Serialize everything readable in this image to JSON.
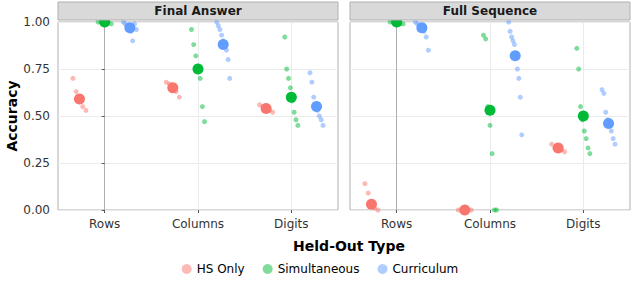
{
  "chart_data": [
    {
      "type": "scatter",
      "title": "Final Answer",
      "x_label": "Held-Out Type",
      "y_label": "Accuracy",
      "categories": [
        "Rows",
        "Columns",
        "Digits"
      ],
      "ylim": [
        0,
        1
      ],
      "yticks": [
        {
          "value": 0,
          "label": "0.00"
        },
        {
          "value": 0.25,
          "label": "0.25"
        },
        {
          "value": 0.5,
          "label": "0.50"
        },
        {
          "value": 0.75,
          "label": "0.75"
        },
        {
          "value": 1,
          "label": "1.00"
        }
      ],
      "grid": true,
      "legend": "bottom",
      "series": [
        {
          "name": "HS Only",
          "color": "#F8766D",
          "values": [
            0.59,
            0.65,
            0.54
          ],
          "points": [
            [
              0.7,
              0.63,
              0.58,
              0.55,
              0.53
            ],
            [
              0.68,
              0.67,
              0.65,
              0.63,
              0.6
            ],
            [
              0.56,
              0.55,
              0.54,
              0.53,
              0.52
            ]
          ]
        },
        {
          "name": "Simultaneous",
          "color": "#00BA38",
          "values": [
            1.0,
            0.75,
            0.6
          ],
          "points": [
            [
              1.0,
              1.0,
              0.99,
              1.0,
              0.99
            ],
            [
              0.96,
              0.88,
              0.82,
              0.76,
              0.7,
              0.55,
              0.47
            ],
            [
              0.92,
              0.75,
              0.7,
              0.65,
              0.58,
              0.52,
              0.48,
              0.45
            ]
          ]
        },
        {
          "name": "Curriculum",
          "color": "#619CFF",
          "values": [
            0.97,
            0.88,
            0.55
          ],
          "points": [
            [
              1.0,
              0.99,
              0.98,
              0.97,
              0.95,
              0.9,
              0.99,
              0.96
            ],
            [
              1.0,
              0.98,
              0.96,
              0.93,
              0.9,
              0.87,
              0.85,
              0.8,
              0.7
            ],
            [
              0.73,
              0.68,
              0.6,
              0.56,
              0.53,
              0.5,
              0.48,
              0.45
            ]
          ]
        }
      ]
    },
    {
      "type": "scatter",
      "title": "Full Sequence",
      "categories": [
        "Rows",
        "Columns",
        "Digits"
      ],
      "ylim": [
        0,
        1
      ],
      "yticks": [
        {
          "value": 0,
          "label": "0.00"
        },
        {
          "value": 0.25,
          "label": "0.25"
        },
        {
          "value": 0.5,
          "label": "0.50"
        },
        {
          "value": 0.75,
          "label": "0.75"
        },
        {
          "value": 1,
          "label": "1.00"
        }
      ],
      "grid": true,
      "tick_labels": "x",
      "series": [
        {
          "name": "HS Only",
          "color": "#F8766D",
          "values": [
            0.03,
            0.0,
            0.33
          ],
          "points": [
            [
              0.14,
              0.09,
              0.03,
              0.01,
              0.0
            ],
            [
              0.0,
              0.0,
              0.0,
              0.0,
              0.0
            ],
            [
              0.35,
              0.33,
              0.32,
              0.32,
              0.31
            ]
          ]
        },
        {
          "name": "Simultaneous",
          "color": "#00BA38",
          "values": [
            1.0,
            0.53,
            0.5
          ],
          "points": [
            [
              1.0,
              1.0,
              1.0,
              0.99,
              0.99
            ],
            [
              0.93,
              0.91,
              0.55,
              0.45,
              0.3,
              0.0,
              0.0
            ],
            [
              0.86,
              0.75,
              0.55,
              0.48,
              0.42,
              0.38,
              0.33,
              0.3
            ]
          ]
        },
        {
          "name": "Curriculum",
          "color": "#619CFF",
          "values": [
            0.97,
            0.82,
            0.46
          ],
          "points": [
            [
              1.0,
              0.99,
              0.98,
              0.97,
              0.95,
              0.92,
              0.85
            ],
            [
              1.0,
              0.95,
              0.92,
              0.9,
              0.88,
              0.82,
              0.75,
              0.7,
              0.6,
              0.4
            ],
            [
              0.64,
              0.62,
              0.52,
              0.48,
              0.45,
              0.42,
              0.38,
              0.35
            ]
          ]
        }
      ]
    }
  ]
}
